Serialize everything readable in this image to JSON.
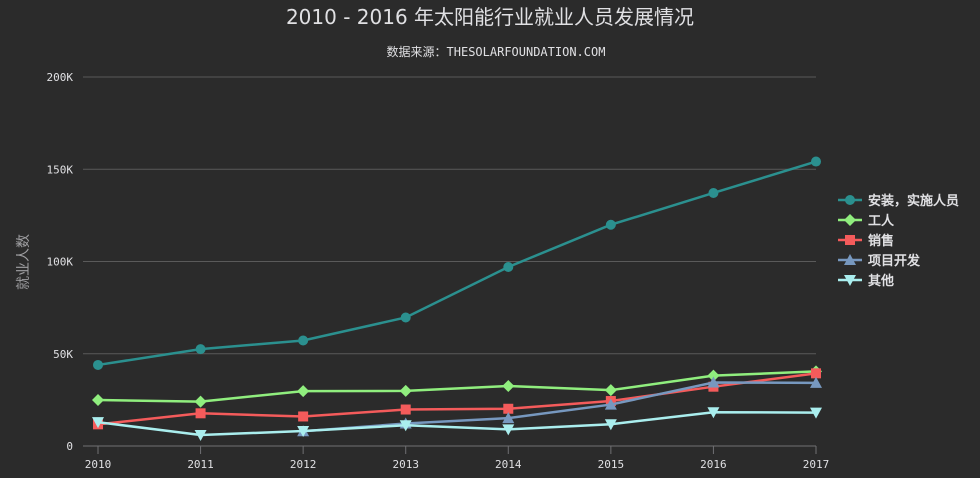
{
  "chart_data": {
    "type": "line",
    "title": "2010 - 2016 年太阳能行业就业人员发展情况",
    "subtitle": "数据来源：THESOLARFOUNDATION.COM",
    "ylabel": "就业人数",
    "xlabel": "",
    "x": [
      2010,
      2011,
      2012,
      2013,
      2014,
      2015,
      2016,
      2017
    ],
    "ylim": [
      0,
      200000
    ],
    "yticks": [
      0,
      50000,
      100000,
      150000,
      200000
    ],
    "ytick_labels": [
      "0",
      "50K",
      "100K",
      "150K",
      "200K"
    ],
    "grid": true,
    "legend_position": "right",
    "series": [
      {
        "name": "安装，实施人员",
        "color": "#2b908f",
        "marker": "circle",
        "values": [
          43934,
          52503,
          57177,
          69658,
          97031,
          119931,
          137133,
          154175
        ]
      },
      {
        "name": "工人",
        "color": "#90ee7e",
        "marker": "diamond",
        "values": [
          24916,
          24064,
          29742,
          29851,
          32490,
          30282,
          38121,
          40434
        ]
      },
      {
        "name": "销售",
        "color": "#f45b5b",
        "marker": "square",
        "values": [
          11744,
          17722,
          16005,
          19771,
          20185,
          24377,
          32147,
          39387
        ]
      },
      {
        "name": "项目开发",
        "color": "#7798bf",
        "marker": "triangle",
        "values": [
          null,
          null,
          7988,
          12169,
          15112,
          22452,
          34400,
          34227
        ]
      },
      {
        "name": "其他",
        "color": "#aaeeee",
        "marker": "triangle-down",
        "values": [
          12908,
          5948,
          8105,
          11248,
          8989,
          11816,
          18274,
          18111
        ]
      }
    ]
  }
}
